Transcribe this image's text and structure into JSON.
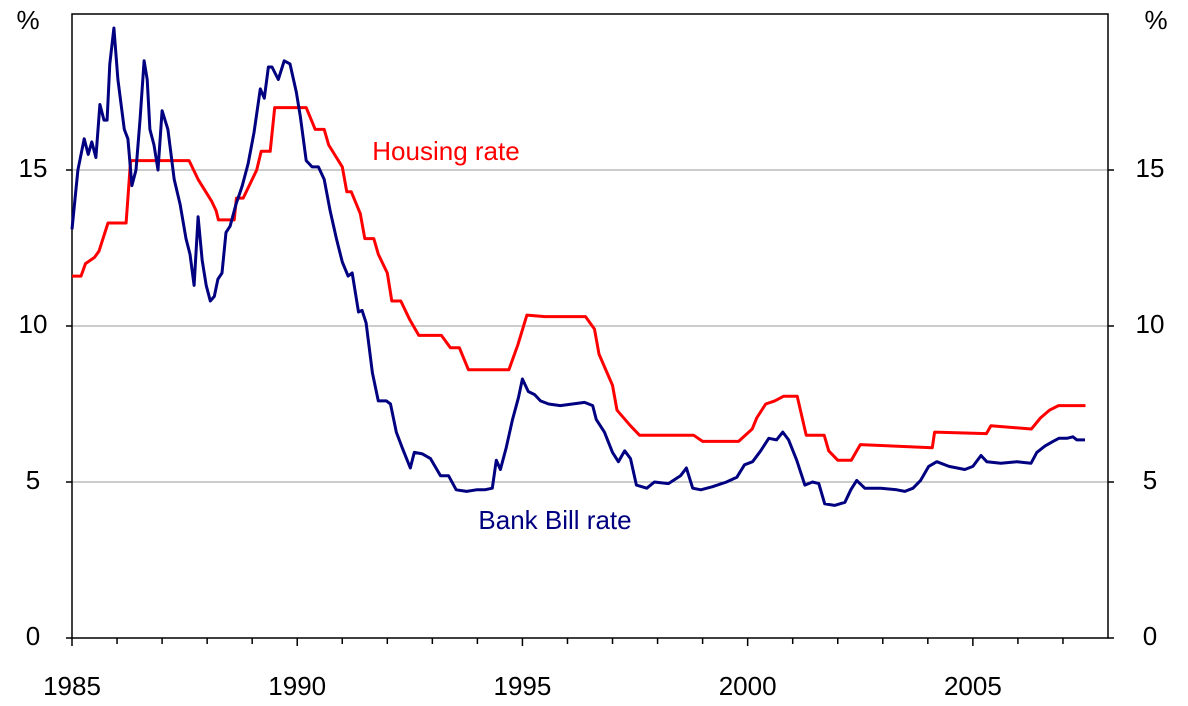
{
  "chart_data": {
    "type": "line",
    "ylabel": "%",
    "y2label": "%",
    "xlim": [
      1985,
      2008
    ],
    "xticks": [
      1985,
      1990,
      1995,
      2000,
      2005
    ],
    "xminorticks": [
      1986,
      1987,
      1988,
      1989,
      1991,
      1992,
      1993,
      1994,
      1996,
      1997,
      1998,
      1999,
      2001,
      2002,
      2003,
      2004,
      2006,
      2007
    ],
    "ylim": [
      0,
      20
    ],
    "yticks": [
      0,
      5,
      10,
      15
    ],
    "y2lim": [
      0,
      20
    ],
    "y2ticks": [
      0,
      5,
      10,
      15
    ],
    "grid": true,
    "series": [
      {
        "name": "Housing rate",
        "color": "#ff0000",
        "x": [
          1985.0,
          1985.2,
          1985.3,
          1985.5,
          1985.6,
          1985.8,
          1986.2,
          1986.3,
          1987.6,
          1987.8,
          1988.1,
          1988.2,
          1988.25,
          1988.6,
          1988.65,
          1988.8,
          1989.0,
          1989.1,
          1989.2,
          1989.4,
          1989.5,
          1990.2,
          1990.4,
          1990.6,
          1990.7,
          1991.0,
          1991.1,
          1991.2,
          1991.4,
          1991.5,
          1991.7,
          1991.8,
          1992.0,
          1992.1,
          1992.3,
          1992.5,
          1992.7,
          1993.2,
          1993.4,
          1993.6,
          1993.8,
          1994.7,
          1994.9,
          1995.1,
          1995.5,
          1996.4,
          1996.6,
          1996.7,
          1997.0,
          1997.1,
          1997.4,
          1997.6,
          1998.8,
          1999.0,
          1999.8,
          2000.1,
          2000.2,
          2000.4,
          2000.6,
          2000.8,
          2001.1,
          2001.3,
          2001.7,
          2001.8,
          2002.0,
          2002.3,
          2002.5,
          2004.1,
          2004.15,
          2005.3,
          2005.4,
          2006.3,
          2006.5,
          2006.7,
          2006.9,
          2007.5
        ],
        "values": [
          11.6,
          11.6,
          12.0,
          12.2,
          12.4,
          13.3,
          13.3,
          15.3,
          15.3,
          14.7,
          14.0,
          13.7,
          13.4,
          13.4,
          14.1,
          14.1,
          14.7,
          15.0,
          15.6,
          15.6,
          17.0,
          17.0,
          16.3,
          16.3,
          15.8,
          15.1,
          14.3,
          14.3,
          13.6,
          12.8,
          12.8,
          12.3,
          11.7,
          10.8,
          10.8,
          10.2,
          9.7,
          9.7,
          9.3,
          9.3,
          8.6,
          8.6,
          9.4,
          10.35,
          10.3,
          10.3,
          9.9,
          9.1,
          8.1,
          7.3,
          6.8,
          6.5,
          6.5,
          6.3,
          6.3,
          6.7,
          7.05,
          7.5,
          7.6,
          7.75,
          7.75,
          6.5,
          6.5,
          6.0,
          5.7,
          5.7,
          6.2,
          6.1,
          6.6,
          6.55,
          6.8,
          6.7,
          7.05,
          7.3,
          7.45,
          7.45
        ]
      },
      {
        "name": "Bank Bill rate",
        "color": "#000080",
        "x": [
          1985.0,
          1985.13,
          1985.27,
          1985.36,
          1985.44,
          1985.53,
          1985.62,
          1985.71,
          1985.78,
          1985.84,
          1985.93,
          1986.02,
          1986.16,
          1986.24,
          1986.33,
          1986.42,
          1986.51,
          1986.6,
          1986.67,
          1986.73,
          1986.82,
          1986.91,
          1987.0,
          1987.13,
          1987.27,
          1987.4,
          1987.53,
          1987.62,
          1987.71,
          1987.8,
          1987.89,
          1987.98,
          1988.07,
          1988.16,
          1988.24,
          1988.33,
          1988.42,
          1988.51,
          1988.64,
          1988.78,
          1988.91,
          1989.04,
          1989.18,
          1989.27,
          1989.36,
          1989.44,
          1989.58,
          1989.71,
          1989.84,
          1989.98,
          1990.07,
          1990.2,
          1990.33,
          1990.47,
          1990.6,
          1990.73,
          1990.87,
          1991.0,
          1991.13,
          1991.22,
          1991.36,
          1991.44,
          1991.53,
          1991.67,
          1991.8,
          1991.98,
          1992.07,
          1992.2,
          1992.33,
          1992.51,
          1992.6,
          1992.78,
          1992.96,
          1993.18,
          1993.36,
          1993.53,
          1993.76,
          1993.98,
          1994.16,
          1994.33,
          1994.42,
          1994.51,
          1994.64,
          1994.78,
          1994.91,
          1995.0,
          1995.13,
          1995.27,
          1995.4,
          1995.58,
          1995.84,
          1996.11,
          1996.38,
          1996.56,
          1996.64,
          1996.82,
          1997.0,
          1997.13,
          1997.27,
          1997.4,
          1997.53,
          1997.76,
          1997.93,
          1998.24,
          1998.51,
          1998.64,
          1998.78,
          1998.96,
          1999.22,
          1999.53,
          1999.76,
          1999.93,
          2000.11,
          2000.29,
          2000.47,
          2000.64,
          2000.78,
          2000.91,
          2001.09,
          2001.27,
          2001.44,
          2001.58,
          2001.71,
          2001.93,
          2002.16,
          2002.29,
          2002.42,
          2002.6,
          2002.96,
          2003.31,
          2003.49,
          2003.67,
          2003.84,
          2004.02,
          2004.2,
          2004.47,
          2004.82,
          2005.0,
          2005.18,
          2005.31,
          2005.62,
          2005.98,
          2006.29,
          2006.42,
          2006.6,
          2006.78,
          2006.91,
          2007.09,
          2007.22,
          2007.31,
          2007.49
        ],
        "values": [
          13.1,
          15.0,
          16.0,
          15.5,
          15.9,
          15.4,
          17.1,
          16.6,
          16.6,
          18.4,
          19.55,
          17.9,
          16.3,
          16.0,
          14.5,
          15.0,
          16.6,
          18.5,
          17.9,
          16.3,
          15.8,
          15.0,
          16.9,
          16.3,
          14.7,
          13.9,
          12.8,
          12.3,
          11.3,
          13.5,
          12.1,
          11.3,
          10.8,
          10.95,
          11.5,
          11.7,
          13.0,
          13.2,
          13.9,
          14.5,
          15.2,
          16.2,
          17.6,
          17.3,
          18.3,
          18.3,
          17.9,
          18.5,
          18.4,
          17.5,
          16.7,
          15.3,
          15.1,
          15.1,
          14.7,
          13.7,
          12.8,
          12.05,
          11.6,
          11.7,
          10.45,
          10.5,
          10.1,
          8.5,
          7.6,
          7.6,
          7.5,
          6.6,
          6.1,
          5.45,
          5.95,
          5.9,
          5.75,
          5.2,
          5.2,
          4.75,
          4.7,
          4.75,
          4.75,
          4.8,
          5.7,
          5.4,
          6.1,
          7.0,
          7.7,
          8.3,
          7.9,
          7.8,
          7.6,
          7.5,
          7.45,
          7.5,
          7.55,
          7.45,
          7.0,
          6.6,
          5.95,
          5.65,
          6.0,
          5.75,
          4.9,
          4.8,
          5.0,
          4.95,
          5.2,
          5.45,
          4.8,
          4.75,
          4.85,
          5.0,
          5.15,
          5.55,
          5.65,
          6.0,
          6.4,
          6.35,
          6.6,
          6.35,
          5.7,
          4.9,
          5.0,
          4.95,
          4.3,
          4.25,
          4.35,
          4.75,
          5.05,
          4.8,
          4.8,
          4.75,
          4.7,
          4.8,
          5.05,
          5.5,
          5.65,
          5.5,
          5.4,
          5.5,
          5.85,
          5.65,
          5.6,
          5.65,
          5.6,
          5.95,
          6.15,
          6.3,
          6.4,
          6.4,
          6.45,
          6.35,
          6.35
        ]
      }
    ]
  }
}
